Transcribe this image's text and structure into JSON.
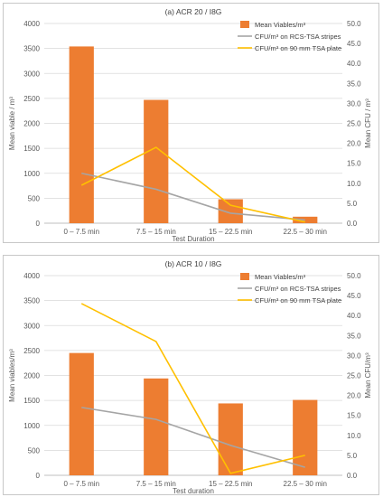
{
  "chart_data": [
    {
      "type": "bar",
      "title": "(a) ACR 20 / I8G",
      "xlabel": "Test Duration",
      "ylabel": "Mean viable / m³",
      "y2label": "Mean CFU / m³",
      "categories": [
        "0 – 7.5 min",
        "7.5 – 15 min",
        "15 – 22.5 min",
        "22.5 – 30 min"
      ],
      "ylim": [
        0,
        4000
      ],
      "y2lim": [
        0,
        50
      ],
      "yticks": [
        "0",
        "500",
        "1000",
        "1500",
        "2000",
        "2500",
        "3000",
        "3500",
        "4000"
      ],
      "y2ticks": [
        "0.0",
        "5.0",
        "10.0",
        "15.0",
        "20.0",
        "25.0",
        "30.0",
        "35.0",
        "40.0",
        "45.0",
        "50.0"
      ],
      "legend_position": "top-right",
      "series": [
        {
          "name": "Mean Viables/m³",
          "kind": "bar",
          "axis": "left",
          "color": "#ED7D31",
          "values": [
            3540,
            2470,
            480,
            130
          ]
        },
        {
          "name": "CFU/m³ on RCS-TSA stripes",
          "kind": "line",
          "axis": "right",
          "color": "#A5A5A5",
          "values": [
            12.5,
            8.5,
            2.5,
            0.8
          ]
        },
        {
          "name": "CFU/m³ on 90 mm TSA plate",
          "kind": "line",
          "axis": "right",
          "color": "#FFC000",
          "values": [
            9.5,
            19.0,
            4.5,
            0.3
          ]
        }
      ]
    },
    {
      "type": "bar",
      "title": "(b) ACR 10 / I8G",
      "xlabel": "Test duration",
      "ylabel": "Mean viables/m³",
      "y2label": "Mean CFU/m³",
      "categories": [
        "0 – 7.5 min",
        "7.5 – 15 min",
        "15 – 22.5 min",
        "22.5 – 30 min"
      ],
      "ylim": [
        0,
        4000
      ],
      "y2lim": [
        0,
        50
      ],
      "yticks": [
        "0",
        "500",
        "1000",
        "1500",
        "2000",
        "2500",
        "3000",
        "3500",
        "4000"
      ],
      "y2ticks": [
        "0.0",
        "5.0",
        "10.0",
        "15.0",
        "20.0",
        "25.0",
        "30.0",
        "35.0",
        "40.0",
        "45.0",
        "50.0"
      ],
      "legend_position": "top-right",
      "series": [
        {
          "name": "Mean Viables/m³",
          "kind": "bar",
          "axis": "left",
          "color": "#ED7D31",
          "values": [
            2450,
            1940,
            1440,
            1510
          ]
        },
        {
          "name": "CFU/m³ on RCS-TSA stripes",
          "kind": "line",
          "axis": "right",
          "color": "#A5A5A5",
          "values": [
            17.0,
            14.0,
            7.5,
            2.0
          ]
        },
        {
          "name": "CFU/m³ on 90 mm TSA plate",
          "kind": "line",
          "axis": "right",
          "color": "#FFC000",
          "values": [
            43.0,
            33.5,
            0.5,
            5.0
          ]
        }
      ]
    }
  ]
}
